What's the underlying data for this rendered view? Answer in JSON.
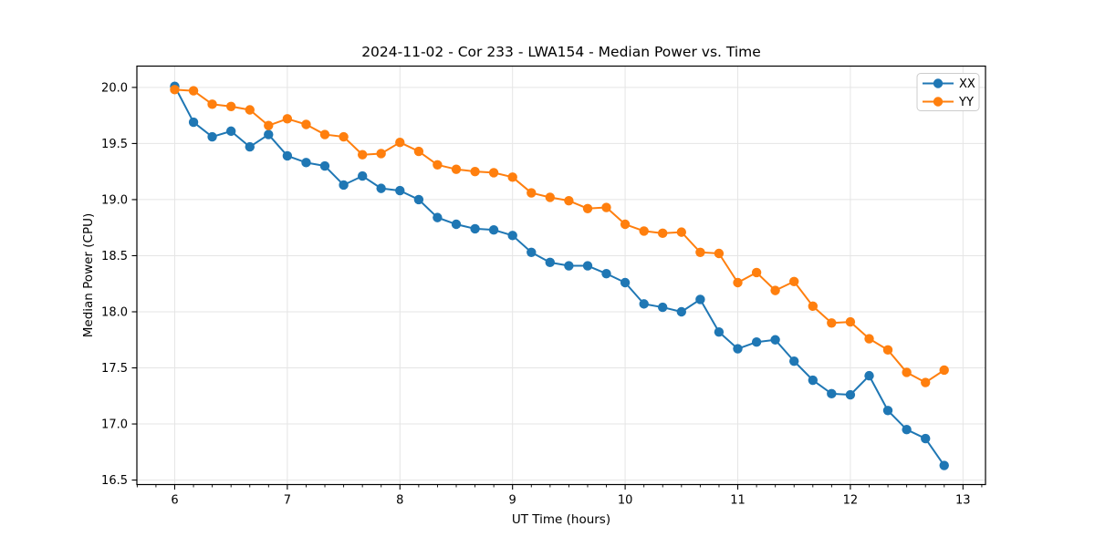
{
  "chart_data": {
    "type": "line",
    "title": "2024-11-02 - Cor 233 - LWA154 - Median Power vs. Time",
    "xlabel": "UT Time (hours)",
    "ylabel": "Median Power (CPU)",
    "xlim": [
      5.664,
      13.2
    ],
    "ylim": [
      16.46,
      20.19
    ],
    "grid": true,
    "legend_position": "upper right",
    "legend": [
      "XX",
      "YY"
    ],
    "xtick_values": [
      6,
      7,
      8,
      9,
      10,
      11,
      12,
      13
    ],
    "xtick_labels": [
      "6",
      "7",
      "8",
      "9",
      "10",
      "11",
      "12",
      "13"
    ],
    "x_minor_tick_step": 0.16667,
    "ytick_values": [
      16.5,
      17.0,
      17.5,
      18.0,
      18.5,
      19.0,
      19.5,
      20.0
    ],
    "ytick_labels": [
      "16.5",
      "17.0",
      "17.5",
      "18.0",
      "18.5",
      "19.0",
      "19.5",
      "20.0"
    ],
    "x": [
      6.0,
      6.167,
      6.333,
      6.5,
      6.667,
      6.833,
      7.0,
      7.167,
      7.333,
      7.5,
      7.667,
      7.833,
      8.0,
      8.167,
      8.333,
      8.5,
      8.667,
      8.833,
      9.0,
      9.167,
      9.333,
      9.5,
      9.667,
      9.833,
      10.0,
      10.167,
      10.333,
      10.5,
      10.667,
      10.833,
      11.0,
      11.167,
      11.333,
      11.5,
      11.667,
      11.833,
      12.0,
      12.167,
      12.333,
      12.5,
      12.667,
      12.833
    ],
    "series": [
      {
        "name": "XX",
        "color": "#1f77b4",
        "values": [
          20.01,
          19.69,
          19.56,
          19.61,
          19.47,
          19.58,
          19.39,
          19.33,
          19.3,
          19.13,
          19.21,
          19.1,
          19.08,
          19.0,
          18.84,
          18.78,
          18.74,
          18.73,
          18.68,
          18.53,
          18.44,
          18.41,
          18.41,
          18.34,
          18.26,
          18.07,
          18.04,
          18.0,
          18.11,
          17.82,
          17.67,
          17.73,
          17.75,
          17.56,
          17.39,
          17.27,
          17.26,
          17.43,
          17.12,
          16.95,
          16.87,
          16.63
        ]
      },
      {
        "name": "YY",
        "color": "#ff7f0e",
        "values": [
          19.98,
          19.97,
          19.85,
          19.83,
          19.8,
          19.66,
          19.72,
          19.67,
          19.58,
          19.56,
          19.4,
          19.41,
          19.51,
          19.43,
          19.31,
          19.27,
          19.25,
          19.24,
          19.2,
          19.06,
          19.02,
          18.99,
          18.92,
          18.93,
          18.78,
          18.72,
          18.7,
          18.71,
          18.53,
          18.52,
          18.26,
          18.35,
          18.19,
          18.27,
          18.05,
          17.9,
          17.91,
          17.76,
          17.66,
          17.46,
          17.37,
          17.48
        ]
      }
    ],
    "style": {
      "grid_color": "#e5e5e5",
      "spine_color": "#000000",
      "background": "#ffffff",
      "legend_border": "#cccccc"
    }
  }
}
